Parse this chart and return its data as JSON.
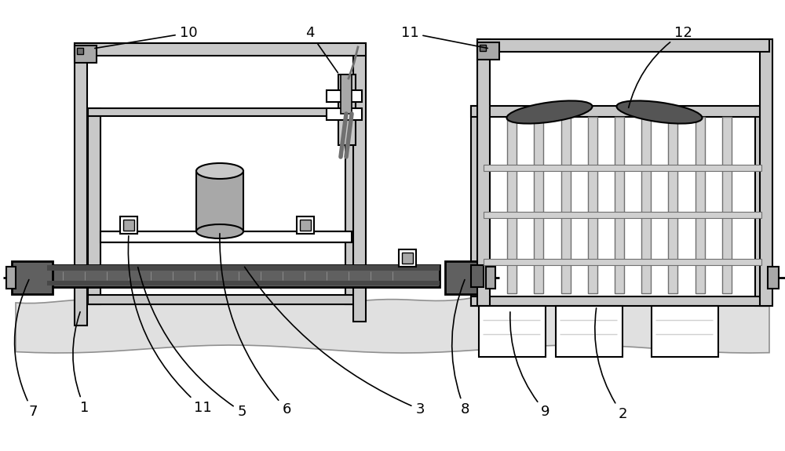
{
  "bg_color": "#ffffff",
  "lc": "#000000",
  "gray_light": "#d0d0d0",
  "gray_mid": "#a8a8a8",
  "gray_dark": "#707070",
  "gray_fill": "#c8c8c8",
  "dark_fill": "#606060",
  "figsize": [
    10.0,
    5.75
  ],
  "dpi": 100
}
